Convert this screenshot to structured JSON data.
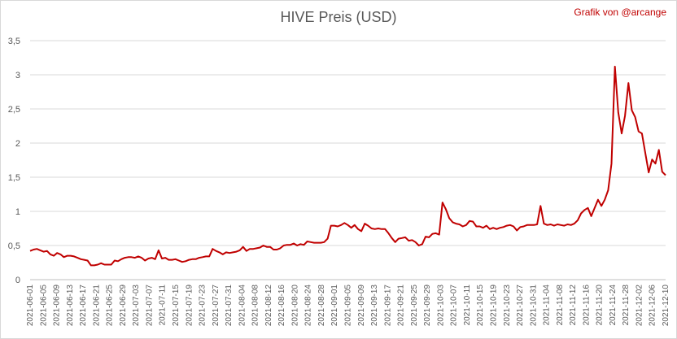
{
  "chart_data": {
    "type": "line",
    "title": "HIVE Preis (USD)",
    "credit": "Grafik von @arcange",
    "ylim": [
      0,
      3.5
    ],
    "y_ticks": [
      "0",
      "0,5",
      "1",
      "1,5",
      "2",
      "2,5",
      "3",
      "3,5"
    ],
    "grid": "horizontal",
    "x_tick_labels": [
      "2021-06-01",
      "2021-06-05",
      "2021-06-09",
      "2021-06-13",
      "2021-06-17",
      "2021-06-21",
      "2021-06-25",
      "2021-06-29",
      "2021-07-03",
      "2021-07-07",
      "2021-07-11",
      "2021-07-15",
      "2021-07-19",
      "2021-07-23",
      "2021-07-27",
      "2021-07-31",
      "2021-08-04",
      "2021-08-08",
      "2021-08-12",
      "2021-08-16",
      "2021-08-20",
      "2021-08-24",
      "2021-08-28",
      "2021-09-01",
      "2021-09-05",
      "2021-09-09",
      "2021-09-13",
      "2021-09-17",
      "2021-09-21",
      "2021-09-25",
      "2021-09-29",
      "2021-10-03",
      "2021-10-07",
      "2021-10-11",
      "2021-10-15",
      "2021-10-19",
      "2021-10-23",
      "2021-10-27",
      "2021-10-31",
      "2021-11-04",
      "2021-11-08",
      "2021-11-12",
      "2021-11-16",
      "2021-11-20",
      "2021-11-24",
      "2021-11-28",
      "2021-12-02",
      "2021-12-06",
      "2021-12-10"
    ],
    "series": [
      {
        "color": "#c00000",
        "values": [
          0.42,
          0.44,
          0.45,
          0.43,
          0.41,
          0.42,
          0.37,
          0.35,
          0.39,
          0.37,
          0.33,
          0.35,
          0.35,
          0.34,
          0.32,
          0.3,
          0.29,
          0.28,
          0.21,
          0.21,
          0.22,
          0.24,
          0.22,
          0.22,
          0.22,
          0.28,
          0.27,
          0.3,
          0.32,
          0.33,
          0.33,
          0.32,
          0.34,
          0.32,
          0.28,
          0.31,
          0.32,
          0.3,
          0.43,
          0.31,
          0.32,
          0.29,
          0.29,
          0.3,
          0.28,
          0.26,
          0.27,
          0.29,
          0.3,
          0.3,
          0.32,
          0.33,
          0.34,
          0.34,
          0.45,
          0.42,
          0.4,
          0.37,
          0.4,
          0.39,
          0.4,
          0.41,
          0.43,
          0.48,
          0.42,
          0.45,
          0.45,
          0.46,
          0.47,
          0.5,
          0.48,
          0.48,
          0.44,
          0.44,
          0.46,
          0.5,
          0.51,
          0.51,
          0.53,
          0.5,
          0.52,
          0.51,
          0.56,
          0.55,
          0.54,
          0.54,
          0.54,
          0.55,
          0.6,
          0.79,
          0.79,
          0.78,
          0.8,
          0.83,
          0.8,
          0.76,
          0.8,
          0.74,
          0.71,
          0.82,
          0.79,
          0.75,
          0.74,
          0.75,
          0.74,
          0.74,
          0.68,
          0.61,
          0.55,
          0.6,
          0.61,
          0.62,
          0.57,
          0.58,
          0.55,
          0.5,
          0.52,
          0.63,
          0.62,
          0.67,
          0.68,
          0.66,
          1.13,
          1.03,
          0.9,
          0.84,
          0.82,
          0.81,
          0.78,
          0.8,
          0.86,
          0.85,
          0.78,
          0.78,
          0.76,
          0.79,
          0.74,
          0.76,
          0.74,
          0.76,
          0.77,
          0.79,
          0.8,
          0.78,
          0.72,
          0.77,
          0.78,
          0.8,
          0.8,
          0.8,
          0.81,
          1.08,
          0.82,
          0.8,
          0.81,
          0.79,
          0.81,
          0.8,
          0.79,
          0.81,
          0.8,
          0.82,
          0.87,
          0.97,
          1.02,
          1.05,
          0.93,
          1.05,
          1.17,
          1.08,
          1.17,
          1.31,
          1.7,
          3.12,
          2.45,
          2.14,
          2.4,
          2.88,
          2.48,
          2.38,
          2.17,
          2.14,
          1.85,
          1.57,
          1.76,
          1.7,
          1.9,
          1.58,
          1.53
        ]
      }
    ]
  }
}
